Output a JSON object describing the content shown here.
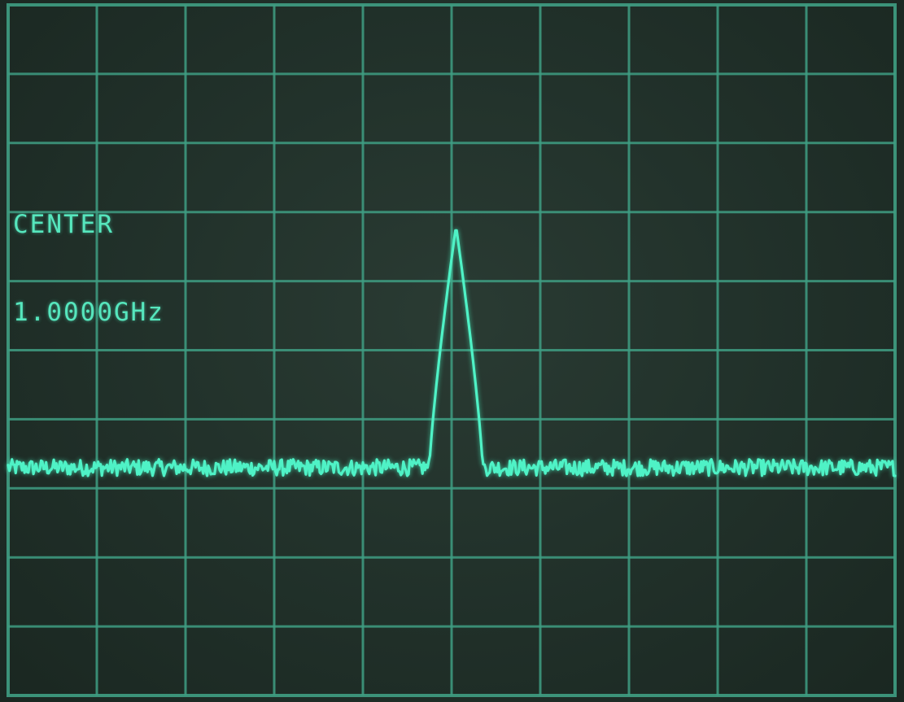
{
  "display": {
    "center_label": "CENTER",
    "center_value": "1.0000GHz"
  },
  "colors": {
    "trace": "#4ff2c6",
    "graticule": "#3f9e83",
    "text": "#56e6bd",
    "background": "#22322b"
  },
  "chart_data": {
    "type": "line",
    "grid": true,
    "divisions": {
      "x": 10,
      "y": 10
    },
    "xlim": [
      0,
      10
    ],
    "ylim": [
      0,
      10
    ],
    "series": [
      {
        "noise_floor": 3.3,
        "noise_amplitude": 0.12,
        "peak": {
          "x": 5.05,
          "y": 6.8,
          "half_width": 0.3
        }
      }
    ]
  }
}
